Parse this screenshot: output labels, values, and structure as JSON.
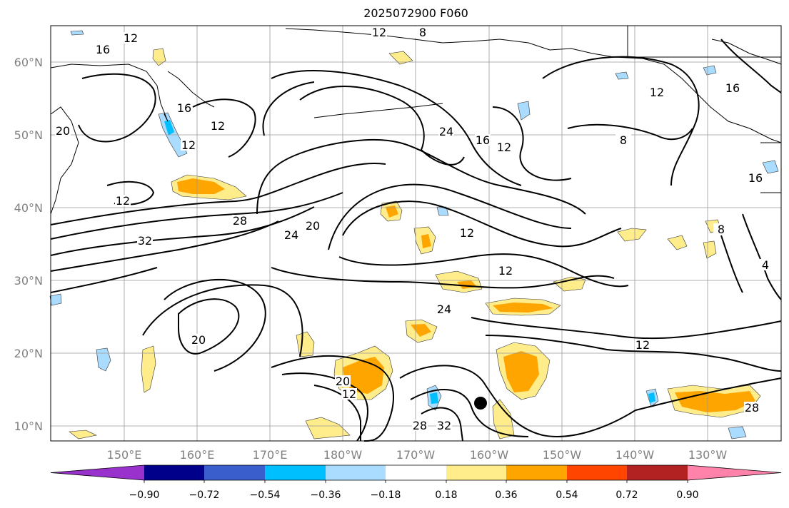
{
  "title": "2025072900 F060",
  "lat_labels": [
    "60°N",
    "50°N",
    "40°N",
    "30°N",
    "20°N",
    "10°N"
  ],
  "lon_labels": [
    "150°E",
    "160°E",
    "170°E",
    "180°W",
    "170°W",
    "160°W",
    "150°W",
    "140°W",
    "130°W"
  ],
  "contour_labels": [
    "12",
    "16",
    "12",
    "8",
    "16",
    "20",
    "12",
    "12",
    "12",
    "24",
    "16",
    "12",
    "8",
    "16",
    "16",
    "12",
    "28",
    "32",
    "24",
    "20",
    "12",
    "12",
    "24",
    "20",
    "20",
    "12",
    "28",
    "32",
    "12",
    "28",
    "8",
    "4"
  ],
  "colorbar": {
    "ticks": [
      "−0.90",
      "−0.72",
      "−0.54",
      "−0.36",
      "−0.18",
      "0.18",
      "0.36",
      "0.54",
      "0.72",
      "0.90"
    ],
    "colors": [
      "#9932cc",
      "#00008b",
      "#3a5fcd",
      "#00bfff",
      "#aadcff",
      "#ffffff",
      "#ffec8b",
      "#ffa500",
      "#ff4500",
      "#b22222",
      "#ff82ab"
    ]
  },
  "marker": {
    "label": "",
    "color": "#000000"
  }
}
